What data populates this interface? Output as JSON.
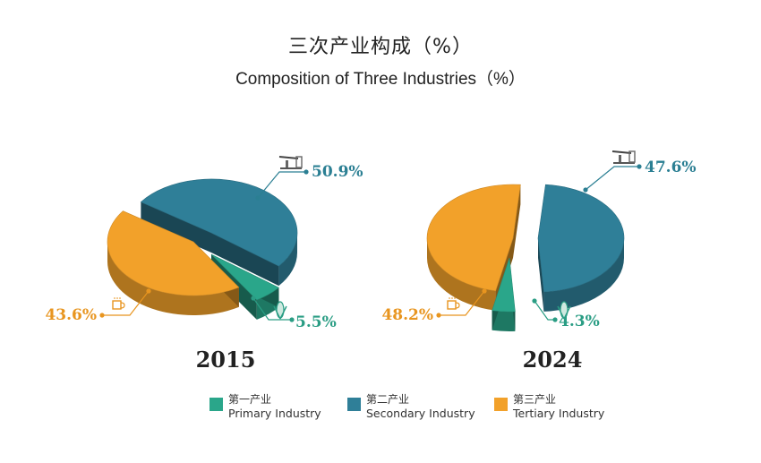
{
  "title_cn": "三次产业构成（%）",
  "title_en": "Composition of Three Industries（%）",
  "colors": {
    "primary": "#2aa68a",
    "secondary": "#2f7f98",
    "tertiary": "#f2a12a",
    "label_dark": "#2b7f93",
    "label_green": "#2a9d84",
    "label_orange": "#e8951f"
  },
  "icons": {
    "secondary": "oil-pump-icon",
    "primary": "wheat-icon",
    "tertiary": "coffee-cup-icon"
  },
  "legend": [
    {
      "key": "primary",
      "cn": "第一产业",
      "en": "Primary Industry"
    },
    {
      "key": "secondary",
      "cn": "第二产业",
      "en": "Secondary Industry"
    },
    {
      "key": "tertiary",
      "cn": "第三产业",
      "en": "Tertiary Industry"
    }
  ],
  "chart_data": [
    {
      "type": "pie",
      "title": "2015",
      "categories": [
        "Primary Industry",
        "Secondary Industry",
        "Tertiary Industry"
      ],
      "values": [
        5.5,
        50.9,
        43.6
      ],
      "labels": [
        "5.5%",
        "50.9%",
        "43.6%"
      ]
    },
    {
      "type": "pie",
      "title": "2024",
      "categories": [
        "Primary Industry",
        "Secondary Industry",
        "Tertiary Industry"
      ],
      "values": [
        4.3,
        47.6,
        48.2
      ],
      "labels": [
        "4.3%",
        "47.6%",
        "48.2%"
      ]
    }
  ]
}
